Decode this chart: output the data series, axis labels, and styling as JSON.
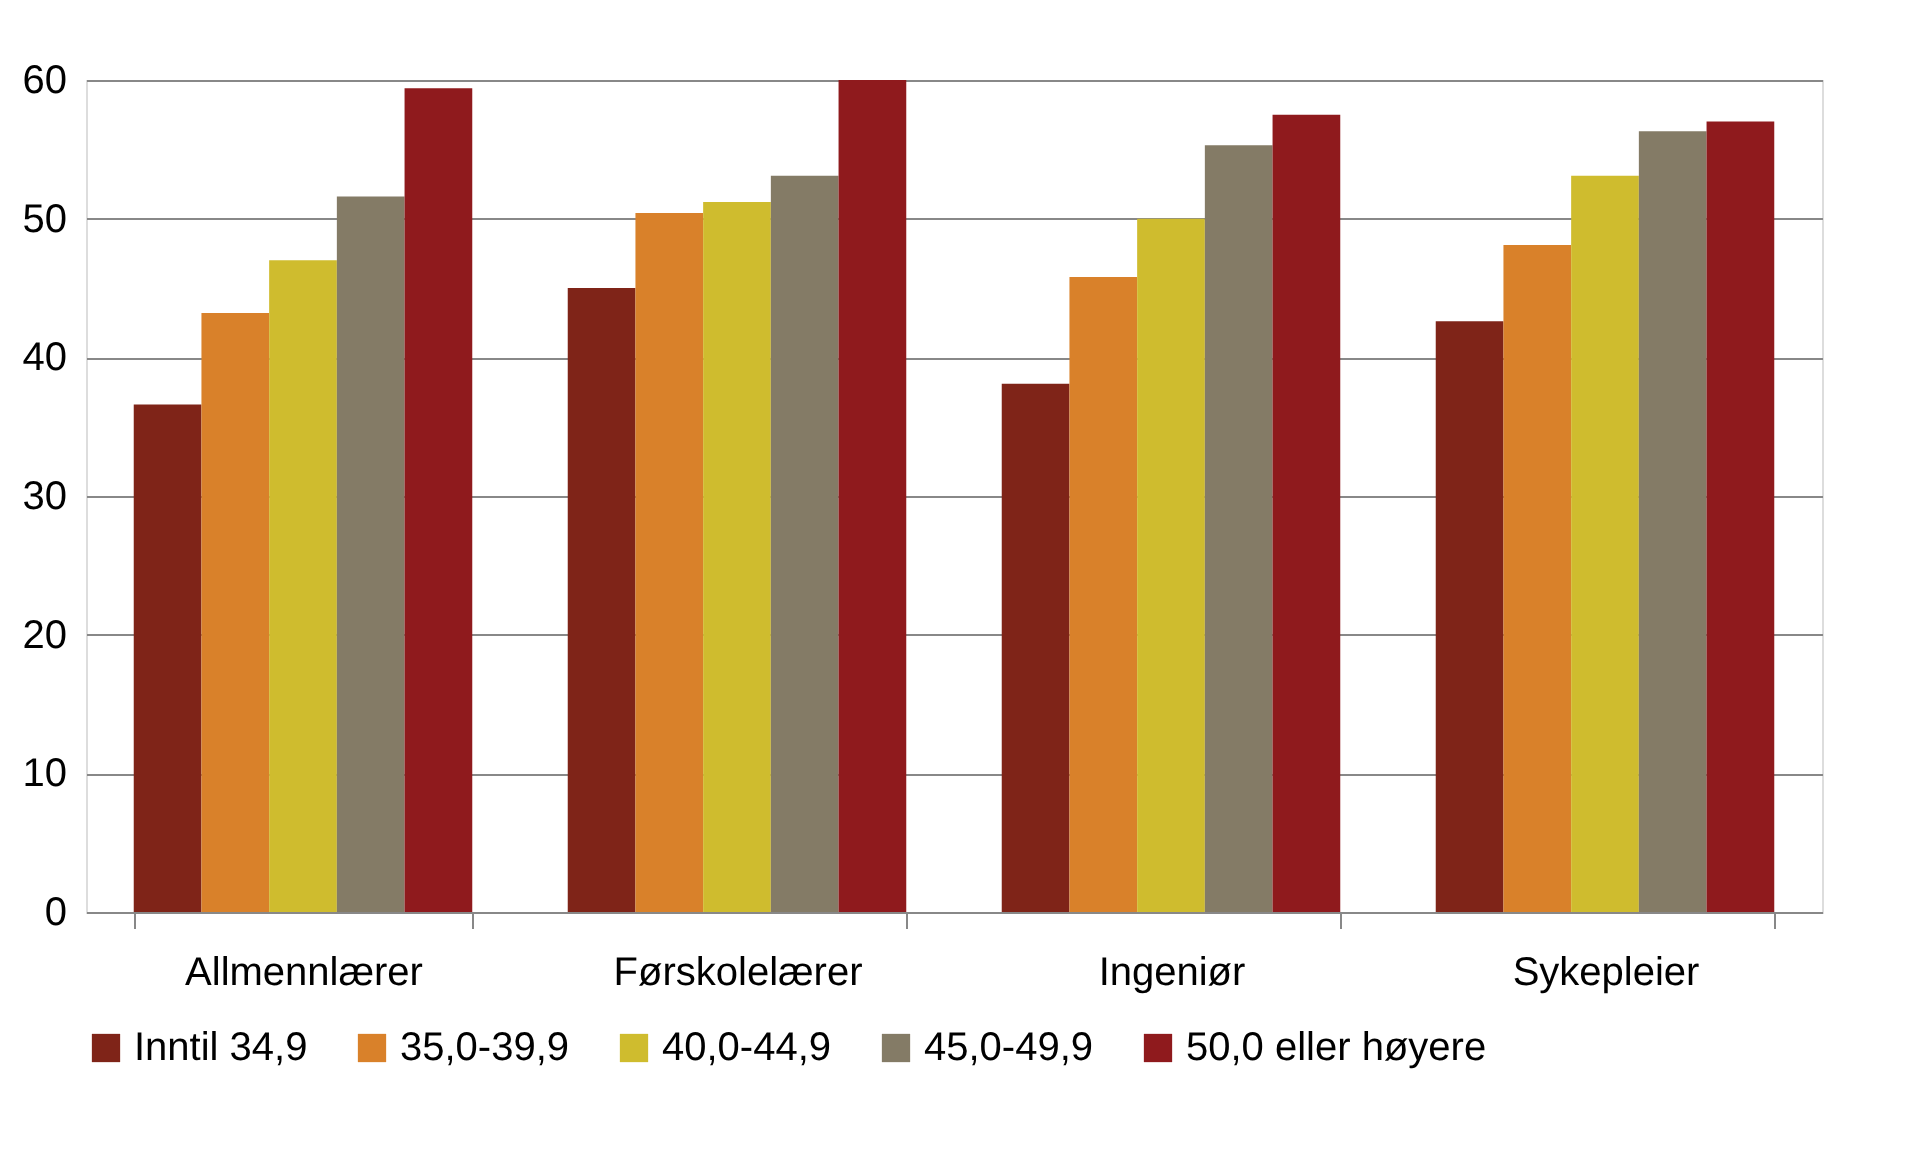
{
  "chart_data": {
    "type": "bar",
    "categories": [
      "Allmennlærer",
      "Førskolelærer",
      "Ingeniør",
      "Sykepleier"
    ],
    "series": [
      {
        "name": "Inntil 34,9",
        "color": "#7f2418",
        "values": [
          36.6,
          45.0,
          38.1,
          42.6
        ]
      },
      {
        "name": "35,0-39,9",
        "color": "#d9812a",
        "values": [
          43.2,
          50.4,
          45.8,
          48.1
        ]
      },
      {
        "name": "40,0-44,9",
        "color": "#cfbc2e",
        "values": [
          47.0,
          51.2,
          50.0,
          53.1
        ]
      },
      {
        "name": "45,0-49,9",
        "color": "#847b66",
        "values": [
          51.6,
          53.1,
          55.3,
          56.3
        ]
      },
      {
        "name": "50,0 eller høyere",
        "color": "#8f1a1d",
        "values": [
          59.4,
          60.0,
          57.5,
          57.0
        ]
      }
    ],
    "ylim": [
      0,
      60
    ],
    "yticks": [
      0,
      10,
      20,
      30,
      40,
      50,
      60
    ],
    "grid": "y",
    "legend": "bottom"
  }
}
